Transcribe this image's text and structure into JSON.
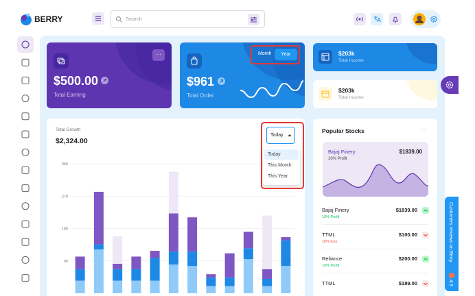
{
  "header": {
    "brand": "BERRY",
    "search_placeholder": "Search"
  },
  "cards": [
    {
      "value": "$500.00",
      "label": "Total Earning"
    },
    {
      "value": "$961",
      "label": "Total Order",
      "toggle": [
        "Month",
        "Year"
      ]
    },
    {
      "value": "$203k",
      "label": "Total Income"
    },
    {
      "value": "$203k",
      "label": "Total Income"
    }
  ],
  "growth": {
    "label": "Total Growth",
    "total": "$2,324.00",
    "dropdown": {
      "selected": "Today",
      "options": [
        "Today",
        "This Month",
        "This Year"
      ]
    }
  },
  "chart_data": {
    "type": "bar",
    "stacked": true,
    "ylim": [
      0,
      360
    ],
    "yticks": [
      90,
      180,
      270,
      360
    ],
    "grid": true,
    "series": [
      {
        "color": "#90caf9",
        "values": [
          35,
          122,
          35,
          35,
          35,
          80,
          76,
          20,
          20,
          95,
          20,
          76
        ]
      },
      {
        "color": "#1e88e5",
        "values": [
          32,
          14,
          32,
          32,
          63,
          36,
          40,
          24,
          24,
          30,
          20,
          71
        ]
      },
      {
        "color": "#7e57c2",
        "values": [
          35,
          146,
          15,
          35,
          20,
          106,
          95,
          9,
          67,
          46,
          27,
          9
        ]
      },
      {
        "color": "#ede7f6",
        "values": [
          0,
          0,
          76,
          0,
          0,
          116,
          0,
          0,
          0,
          0,
          149,
          0
        ]
      }
    ]
  },
  "stocks": {
    "title": "Popular Stocks",
    "featured": {
      "name": "Bajaj Finery",
      "price": "$1839.00",
      "change": "10% Profit"
    },
    "items": [
      {
        "name": "Bajaj Finery",
        "price": "$1839.00",
        "change": "10% Profit",
        "direction": "up"
      },
      {
        "name": "TTML",
        "price": "$100.00",
        "change": "10% loss",
        "direction": "down"
      },
      {
        "name": "Reliance",
        "price": "$200.00",
        "change": "10% Profit",
        "direction": "up"
      },
      {
        "name": "TTML",
        "price": "$189.00",
        "direction": "down"
      }
    ]
  },
  "review_tab": {
    "text": "Customers reviews on Berry",
    "rating": "4.9"
  }
}
